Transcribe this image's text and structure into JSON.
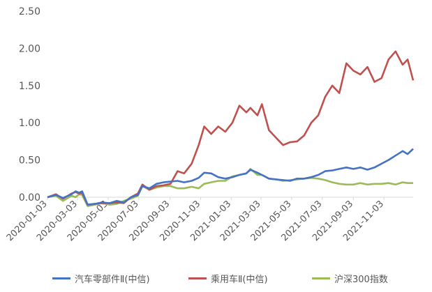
{
  "chart_data": {
    "type": "line",
    "title": "",
    "xlabel": "",
    "ylabel": "",
    "ylim": [
      0,
      2.5
    ],
    "y_ticks": [
      "0.00",
      "0.50",
      "1.00",
      "1.50",
      "2.00",
      "2.50"
    ],
    "y_tick_values": [
      0,
      0.5,
      1.0,
      1.5,
      2.0,
      2.5
    ],
    "x_tick_labels": [
      "2020-01-03",
      "2020-03-03",
      "2020-05-03",
      "2020-07-03",
      "2020-09-03",
      "2020-11-03",
      "2021-01-03",
      "2021-03-03",
      "2021-05-03",
      "2021-07-03",
      "2021-09-03",
      "2021-11-03"
    ],
    "x_range": [
      "2020-01-03",
      "2021-12-31"
    ],
    "grid": false,
    "legend_position": "bottom",
    "series": [
      {
        "name": "汽车零部件Ⅱ(中信)",
        "color": "#4472C4",
        "points": [
          [
            "2020-01-03",
            0.0
          ],
          [
            "2020-01-20",
            0.03
          ],
          [
            "2020-02-03",
            -0.01
          ],
          [
            "2020-02-20",
            0.04
          ],
          [
            "2020-02-28",
            0.08
          ],
          [
            "2020-03-06",
            0.06
          ],
          [
            "2020-03-12",
            0.08
          ],
          [
            "2020-03-23",
            -0.1
          ],
          [
            "2020-04-06",
            -0.09
          ],
          [
            "2020-04-20",
            -0.07
          ],
          [
            "2020-05-06",
            -0.08
          ],
          [
            "2020-05-20",
            -0.05
          ],
          [
            "2020-06-03",
            -0.07
          ],
          [
            "2020-06-17",
            0.0
          ],
          [
            "2020-07-01",
            0.03
          ],
          [
            "2020-07-10",
            0.15
          ],
          [
            "2020-07-24",
            0.12
          ],
          [
            "2020-08-07",
            0.18
          ],
          [
            "2020-08-21",
            0.2
          ],
          [
            "2020-09-04",
            0.21
          ],
          [
            "2020-09-18",
            0.22
          ],
          [
            "2020-10-01",
            0.2
          ],
          [
            "2020-10-16",
            0.22
          ],
          [
            "2020-10-30",
            0.26
          ],
          [
            "2020-11-10",
            0.33
          ],
          [
            "2020-11-24",
            0.32
          ],
          [
            "2020-12-08",
            0.27
          ],
          [
            "2020-12-22",
            0.25
          ],
          [
            "2021-01-05",
            0.27
          ],
          [
            "2021-01-19",
            0.3
          ],
          [
            "2021-02-02",
            0.32
          ],
          [
            "2021-02-10",
            0.37
          ],
          [
            "2021-02-24",
            0.33
          ],
          [
            "2021-03-05",
            0.3
          ],
          [
            "2021-03-19",
            0.25
          ],
          [
            "2021-04-02",
            0.24
          ],
          [
            "2021-04-16",
            0.23
          ],
          [
            "2021-04-30",
            0.22
          ],
          [
            "2021-05-14",
            0.25
          ],
          [
            "2021-05-28",
            0.25
          ],
          [
            "2021-06-11",
            0.27
          ],
          [
            "2021-06-25",
            0.3
          ],
          [
            "2021-07-09",
            0.35
          ],
          [
            "2021-07-23",
            0.36
          ],
          [
            "2021-08-06",
            0.38
          ],
          [
            "2021-08-20",
            0.4
          ],
          [
            "2021-09-03",
            0.38
          ],
          [
            "2021-09-17",
            0.4
          ],
          [
            "2021-10-01",
            0.37
          ],
          [
            "2021-10-15",
            0.4
          ],
          [
            "2021-10-29",
            0.45
          ],
          [
            "2021-11-12",
            0.5
          ],
          [
            "2021-11-26",
            0.56
          ],
          [
            "2021-12-10",
            0.62
          ],
          [
            "2021-12-20",
            0.58
          ],
          [
            "2021-12-31",
            0.65
          ]
        ]
      },
      {
        "name": "乘用车Ⅱ(中信)",
        "color": "#C0504D",
        "points": [
          [
            "2020-01-03",
            0.0
          ],
          [
            "2020-01-20",
            0.04
          ],
          [
            "2020-02-03",
            -0.02
          ],
          [
            "2020-02-20",
            0.05
          ],
          [
            "2020-02-28",
            0.07
          ],
          [
            "2020-03-06",
            0.05
          ],
          [
            "2020-03-12",
            0.06
          ],
          [
            "2020-03-23",
            -0.1
          ],
          [
            "2020-04-06",
            -0.09
          ],
          [
            "2020-04-20",
            -0.08
          ],
          [
            "2020-05-06",
            -0.08
          ],
          [
            "2020-05-20",
            -0.07
          ],
          [
            "2020-06-03",
            -0.08
          ],
          [
            "2020-06-17",
            0.0
          ],
          [
            "2020-07-01",
            0.05
          ],
          [
            "2020-07-10",
            0.17
          ],
          [
            "2020-07-24",
            0.1
          ],
          [
            "2020-08-07",
            0.15
          ],
          [
            "2020-08-21",
            0.16
          ],
          [
            "2020-09-04",
            0.18
          ],
          [
            "2020-09-18",
            0.35
          ],
          [
            "2020-10-01",
            0.32
          ],
          [
            "2020-10-16",
            0.45
          ],
          [
            "2020-10-30",
            0.7
          ],
          [
            "2020-11-10",
            0.95
          ],
          [
            "2020-11-24",
            0.85
          ],
          [
            "2020-12-08",
            0.95
          ],
          [
            "2020-12-22",
            0.88
          ],
          [
            "2021-01-05",
            1.0
          ],
          [
            "2021-01-19",
            1.23
          ],
          [
            "2021-02-02",
            1.14
          ],
          [
            "2021-02-10",
            1.2
          ],
          [
            "2021-02-24",
            1.1
          ],
          [
            "2021-03-05",
            1.25
          ],
          [
            "2021-03-19",
            0.9
          ],
          [
            "2021-04-02",
            0.8
          ],
          [
            "2021-04-16",
            0.7
          ],
          [
            "2021-04-30",
            0.74
          ],
          [
            "2021-05-14",
            0.75
          ],
          [
            "2021-05-28",
            0.83
          ],
          [
            "2021-06-11",
            1.0
          ],
          [
            "2021-06-25",
            1.1
          ],
          [
            "2021-07-09",
            1.35
          ],
          [
            "2021-07-23",
            1.5
          ],
          [
            "2021-08-06",
            1.4
          ],
          [
            "2021-08-20",
            1.8
          ],
          [
            "2021-09-03",
            1.7
          ],
          [
            "2021-09-17",
            1.65
          ],
          [
            "2021-10-01",
            1.75
          ],
          [
            "2021-10-15",
            1.55
          ],
          [
            "2021-10-29",
            1.6
          ],
          [
            "2021-11-12",
            1.85
          ],
          [
            "2021-11-26",
            1.96
          ],
          [
            "2021-12-10",
            1.78
          ],
          [
            "2021-12-20",
            1.85
          ],
          [
            "2021-12-31",
            1.57
          ]
        ]
      },
      {
        "name": "沪深300指数",
        "color": "#9BBB59",
        "points": [
          [
            "2020-01-03",
            0.0
          ],
          [
            "2020-01-20",
            0.02
          ],
          [
            "2020-02-03",
            -0.05
          ],
          [
            "2020-02-20",
            0.02
          ],
          [
            "2020-02-28",
            0.0
          ],
          [
            "2020-03-06",
            0.04
          ],
          [
            "2020-03-12",
            0.03
          ],
          [
            "2020-03-23",
            -0.12
          ],
          [
            "2020-04-06",
            -0.1
          ],
          [
            "2020-04-20",
            -0.08
          ],
          [
            "2020-05-06",
            -0.1
          ],
          [
            "2020-05-20",
            -0.09
          ],
          [
            "2020-06-03",
            -0.05
          ],
          [
            "2020-06-17",
            -0.02
          ],
          [
            "2020-07-01",
            0.02
          ],
          [
            "2020-07-10",
            0.15
          ],
          [
            "2020-07-24",
            0.1
          ],
          [
            "2020-08-07",
            0.13
          ],
          [
            "2020-08-21",
            0.15
          ],
          [
            "2020-09-04",
            0.15
          ],
          [
            "2020-09-18",
            0.12
          ],
          [
            "2020-10-01",
            0.12
          ],
          [
            "2020-10-16",
            0.14
          ],
          [
            "2020-10-30",
            0.12
          ],
          [
            "2020-11-10",
            0.18
          ],
          [
            "2020-11-24",
            0.2
          ],
          [
            "2020-12-08",
            0.22
          ],
          [
            "2020-12-22",
            0.22
          ],
          [
            "2021-01-05",
            0.28
          ],
          [
            "2021-01-19",
            0.3
          ],
          [
            "2021-02-02",
            0.32
          ],
          [
            "2021-02-10",
            0.38
          ],
          [
            "2021-02-24",
            0.3
          ],
          [
            "2021-03-05",
            0.3
          ],
          [
            "2021-03-19",
            0.25
          ],
          [
            "2021-04-02",
            0.24
          ],
          [
            "2021-04-16",
            0.22
          ],
          [
            "2021-04-30",
            0.23
          ],
          [
            "2021-05-14",
            0.24
          ],
          [
            "2021-05-28",
            0.25
          ],
          [
            "2021-06-11",
            0.26
          ],
          [
            "2021-06-25",
            0.25
          ],
          [
            "2021-07-09",
            0.23
          ],
          [
            "2021-07-23",
            0.2
          ],
          [
            "2021-08-06",
            0.18
          ],
          [
            "2021-08-20",
            0.17
          ],
          [
            "2021-09-03",
            0.17
          ],
          [
            "2021-09-17",
            0.19
          ],
          [
            "2021-10-01",
            0.17
          ],
          [
            "2021-10-15",
            0.18
          ],
          [
            "2021-10-29",
            0.18
          ],
          [
            "2021-11-12",
            0.19
          ],
          [
            "2021-11-26",
            0.17
          ],
          [
            "2021-12-10",
            0.2
          ],
          [
            "2021-12-20",
            0.19
          ],
          [
            "2021-12-31",
            0.19
          ]
        ]
      }
    ]
  }
}
